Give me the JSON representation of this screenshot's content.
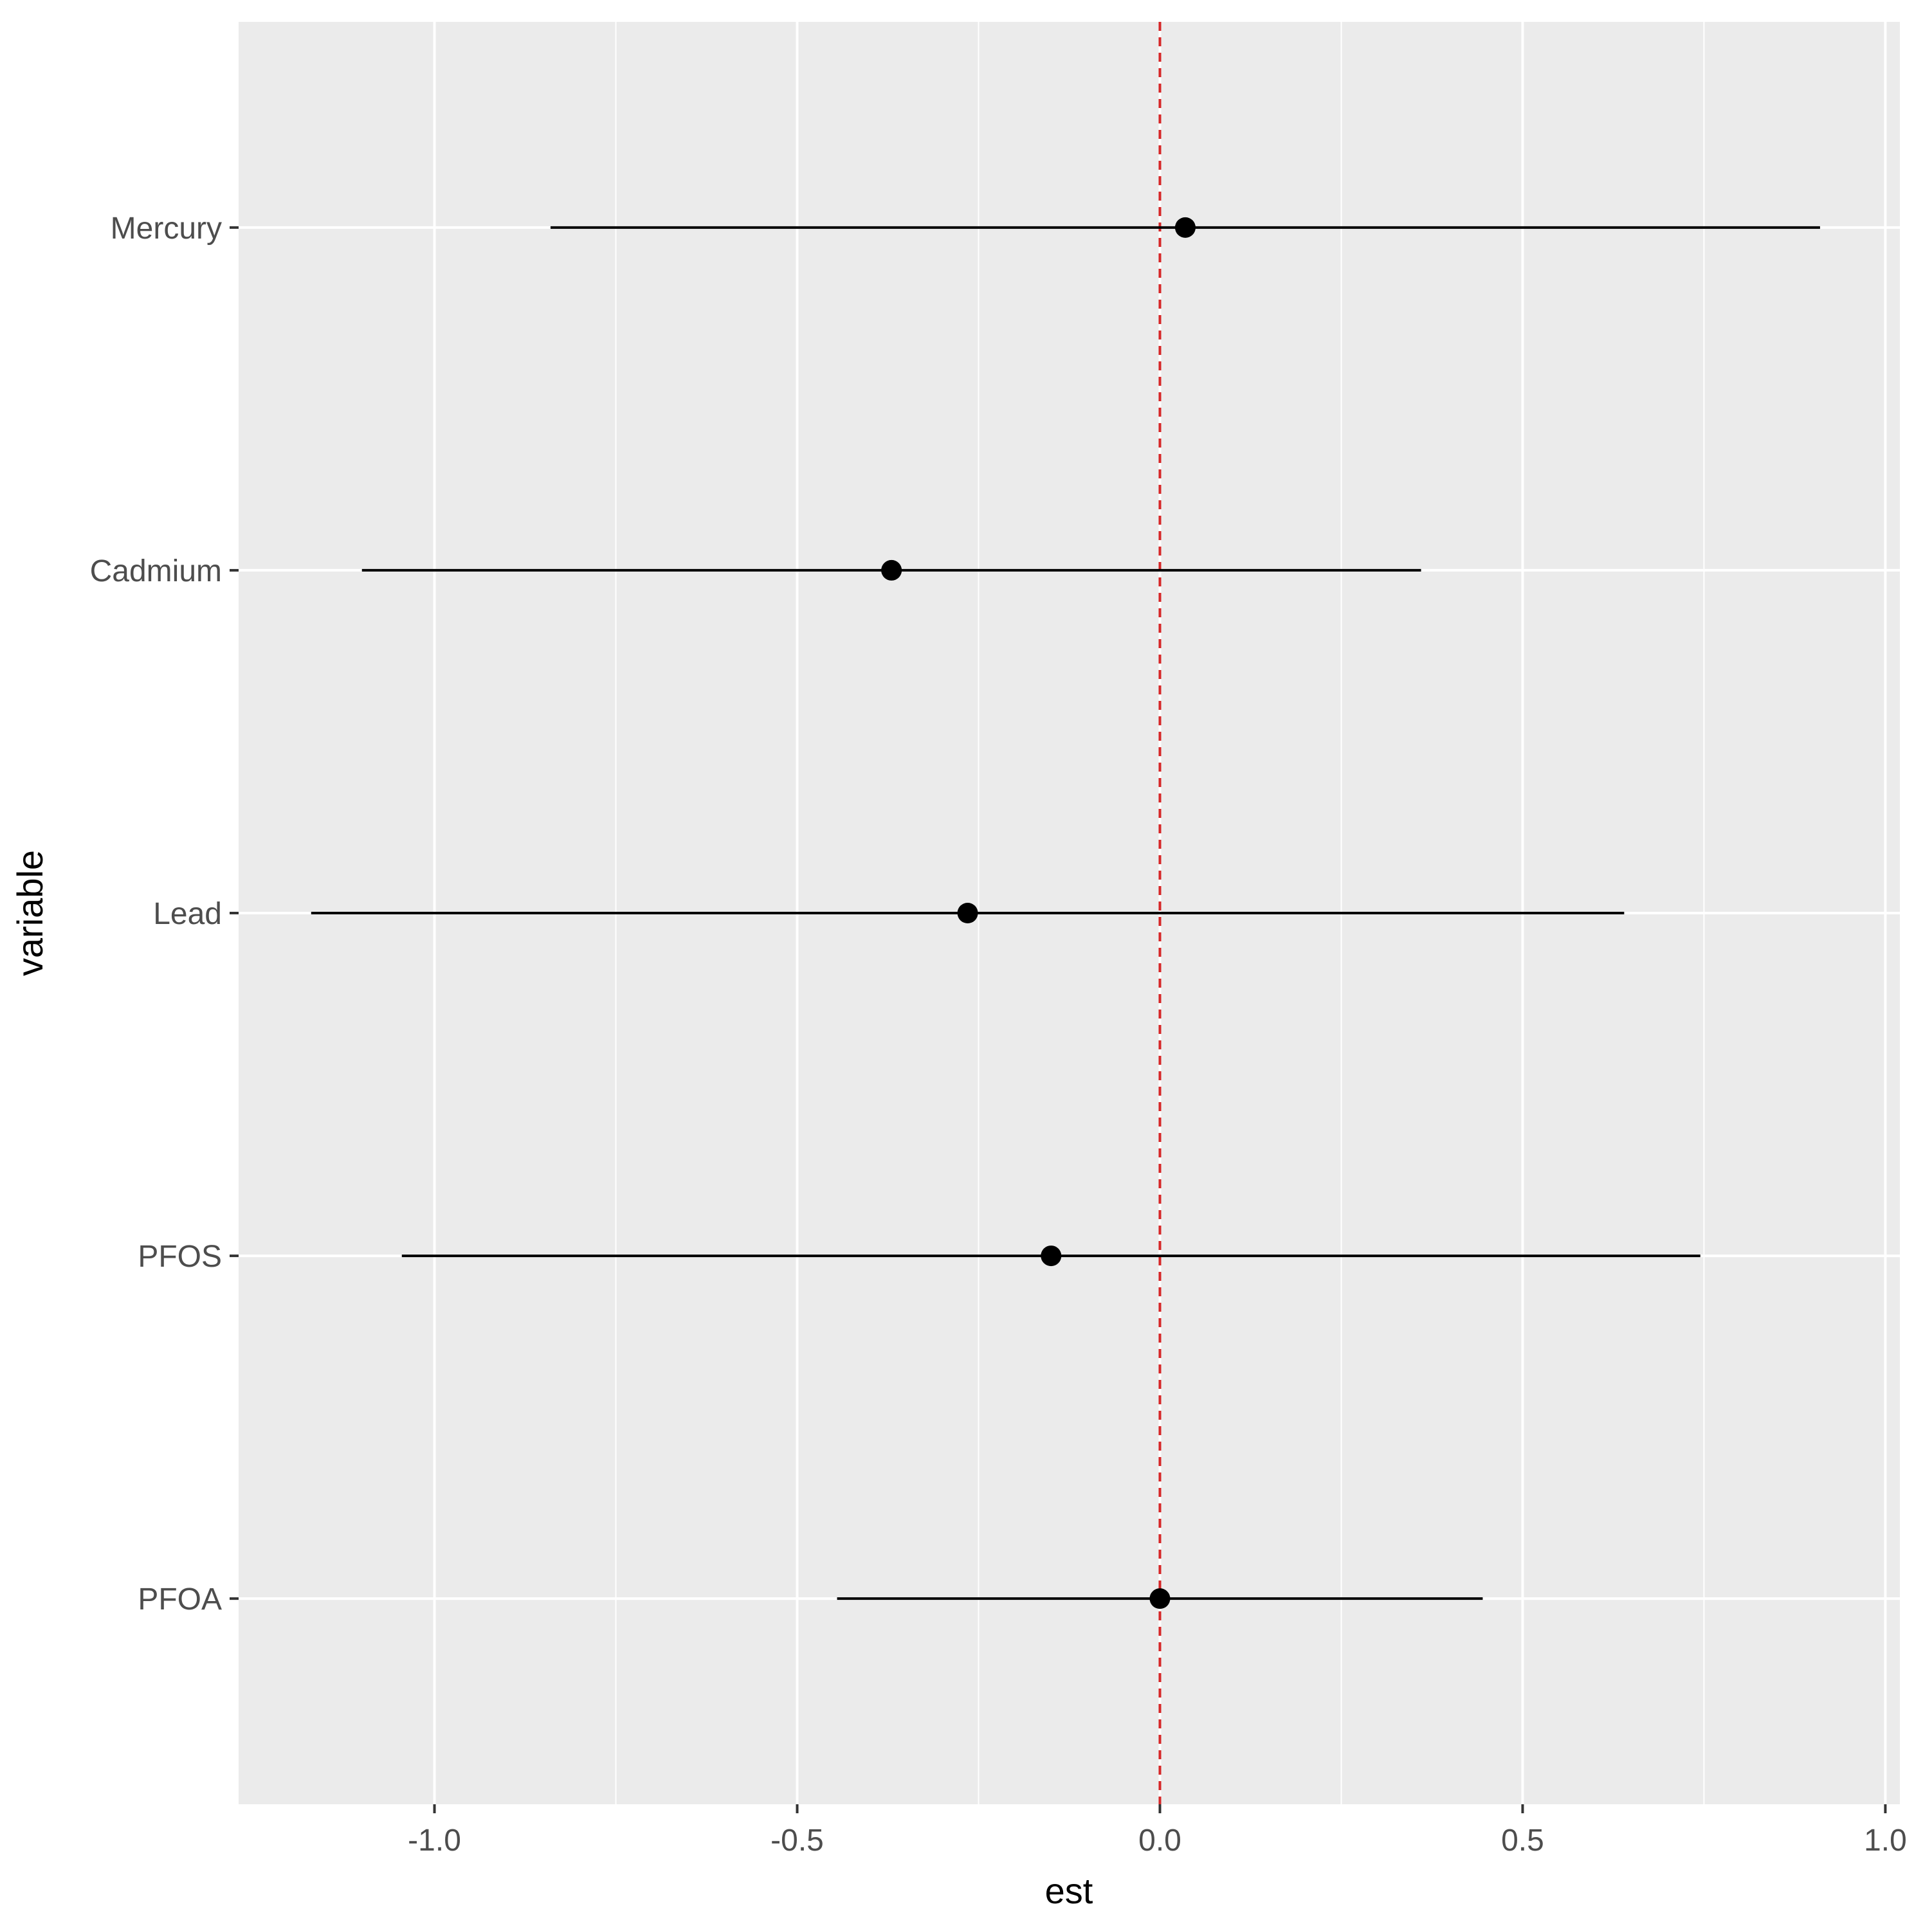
{
  "chart_data": {
    "type": "forest",
    "xlabel": "est",
    "ylabel": "variable",
    "xlim": [
      -1.27,
      1.02
    ],
    "x_ticks": [
      -1.0,
      -0.5,
      0.0,
      0.5,
      1.0
    ],
    "x_tick_labels": [
      "-1.0",
      "-0.5",
      "0.0",
      "0.5",
      "1.0"
    ],
    "x_minor_ticks": [
      -0.75,
      -0.25,
      0.25,
      0.75
    ],
    "categories": [
      "Mercury",
      "Cadmium",
      "Lead",
      "PFOS",
      "PFOA"
    ],
    "series": [
      {
        "points": [
          {
            "variable": "Mercury",
            "est": 0.035,
            "lower": -0.84,
            "upper": 0.91
          },
          {
            "variable": "Cadmium",
            "est": -0.37,
            "lower": -1.1,
            "upper": 0.36
          },
          {
            "variable": "Lead",
            "est": -0.265,
            "lower": -1.17,
            "upper": 0.64
          },
          {
            "variable": "PFOS",
            "est": -0.15,
            "lower": -1.045,
            "upper": 0.745
          },
          {
            "variable": "PFOA",
            "est": 0.0,
            "lower": -0.445,
            "upper": 0.445
          }
        ]
      }
    ],
    "reference_line": {
      "x": 0,
      "color": "#d62728",
      "style": "dashed"
    },
    "grid": true,
    "legend": "none",
    "colors": {
      "panel": "#ebebeb",
      "grid": "#ffffff",
      "marks": "#000000",
      "ticks": "#4d4d4d"
    }
  }
}
